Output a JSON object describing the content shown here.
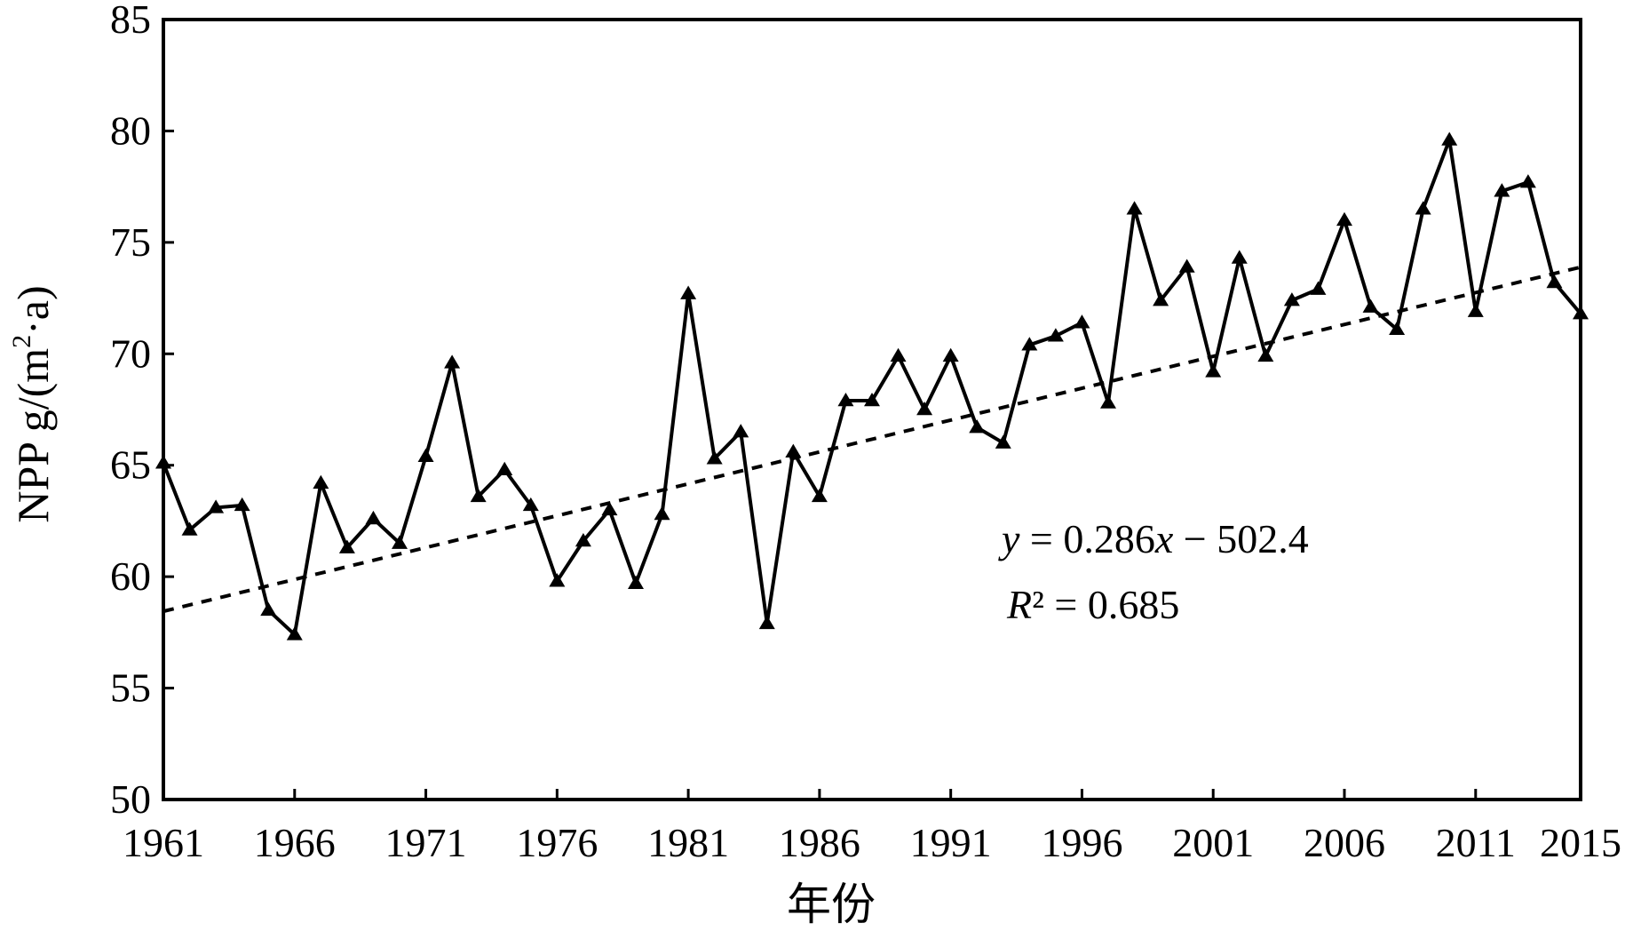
{
  "chart_data": {
    "type": "line",
    "title": "",
    "xlabel": "年份",
    "ylabel": "NPP g/(m²·a)",
    "ylabel_parts": {
      "base": "NPP g/(m",
      "sup": "2",
      "tail": "·a)"
    },
    "xlim": [
      1961,
      2015
    ],
    "ylim": [
      50,
      85
    ],
    "x_ticks": [
      "1961",
      "1966",
      "1971",
      "1976",
      "1981",
      "1986",
      "1991",
      "1996",
      "2001",
      "2006",
      "2011",
      "2015"
    ],
    "y_ticks": [
      "50",
      "55",
      "60",
      "65",
      "70",
      "75",
      "80",
      "85"
    ],
    "grid": false,
    "legend": "none",
    "series": [
      {
        "marker": "triangle",
        "x": [
          1961,
          1962,
          1963,
          1964,
          1965,
          1966,
          1967,
          1968,
          1969,
          1970,
          1971,
          1972,
          1973,
          1974,
          1975,
          1976,
          1977,
          1978,
          1979,
          1980,
          1981,
          1982,
          1983,
          1984,
          1985,
          1986,
          1987,
          1988,
          1989,
          1990,
          1991,
          1992,
          1993,
          1994,
          1995,
          1996,
          1997,
          1998,
          1999,
          2000,
          2001,
          2002,
          2003,
          2004,
          2005,
          2006,
          2007,
          2008,
          2009,
          2010,
          2011,
          2012,
          2013,
          2014,
          2015
        ],
        "values": [
          65.1,
          62.1,
          63.1,
          63.2,
          58.5,
          57.4,
          64.2,
          61.3,
          62.6,
          61.5,
          65.4,
          69.6,
          63.6,
          64.8,
          63.2,
          59.8,
          61.6,
          63.0,
          59.7,
          62.8,
          72.7,
          65.3,
          66.5,
          57.9,
          65.6,
          63.6,
          67.9,
          67.9,
          69.9,
          67.5,
          69.9,
          66.7,
          66.0,
          70.4,
          70.8,
          71.4,
          67.8,
          76.5,
          72.4,
          73.9,
          69.2,
          74.3,
          69.9,
          72.4,
          72.9,
          76.0,
          72.1,
          71.1,
          76.5,
          79.6,
          71.9,
          77.3,
          77.7,
          73.2,
          71.8
        ]
      }
    ],
    "trendline": {
      "slope": 0.286,
      "intercept": -502.4,
      "style": "dashed"
    },
    "annotations": {
      "equation": {
        "var": "y",
        "rest": " = 0.286",
        "xvar": "x",
        "tail": " − 502.4"
      },
      "r2": {
        "var": "R",
        "rest": "² = 0.685"
      }
    }
  }
}
